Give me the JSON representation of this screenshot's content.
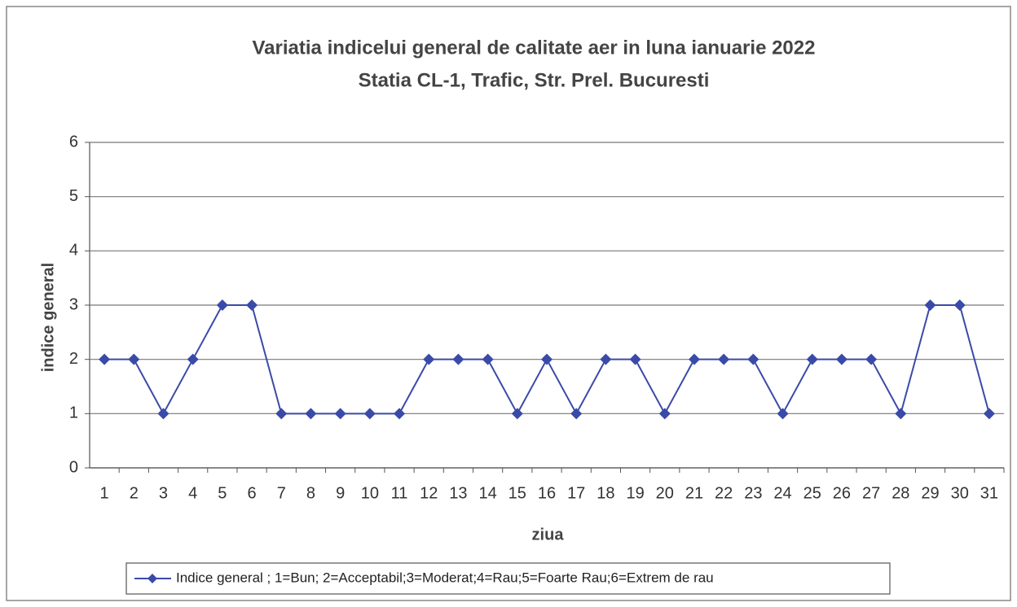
{
  "chart_data": {
    "type": "line",
    "title": "Variatia indicelui general de calitate aer in luna ianuarie 2022",
    "subtitle": "Statia CL-1, Trafic, Str. Prel. Bucuresti",
    "x_label": "ziua",
    "y_label": "indice general",
    "categories": [
      "1",
      "2",
      "3",
      "4",
      "5",
      "6",
      "7",
      "8",
      "9",
      "10",
      "11",
      "12",
      "13",
      "14",
      "15",
      "16",
      "17",
      "18",
      "19",
      "20",
      "21",
      "22",
      "23",
      "24",
      "25",
      "26",
      "27",
      "28",
      "29",
      "30",
      "31"
    ],
    "series": [
      {
        "name": "Indice  general ; 1=Bun; 2=Acceptabil;3=Moderat;4=Rau;5=Foarte Rau;6=Extrem de rau",
        "color": "#3a4aa8",
        "values": [
          2,
          2,
          1,
          2,
          3,
          3,
          1,
          1,
          1,
          1,
          1,
          2,
          2,
          2,
          1,
          2,
          1,
          2,
          2,
          1,
          2,
          2,
          2,
          1,
          2,
          2,
          2,
          1,
          3,
          3,
          1
        ]
      }
    ],
    "ylim": [
      0,
      6
    ],
    "yticks": [
      0,
      1,
      2,
      3,
      4,
      5,
      6
    ],
    "grid": true,
    "legend": "bottom"
  }
}
